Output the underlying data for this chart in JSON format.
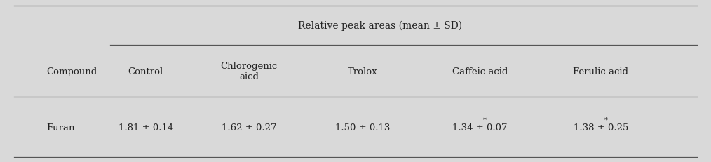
{
  "bg_color": "#d9d9d9",
  "header_main": "Relative peak areas (mean ± SD)",
  "col_headers": [
    "Compound",
    "Control",
    "Chlorogenic\naicd",
    "Trolox",
    "Caffeic acid",
    "Ferulic acid"
  ],
  "data_rows": [
    [
      "Furan",
      "1.81 ± 0.14",
      "1.62 ± 0.27",
      "1.50 ± 0.13",
      "1.34 ± 0.07*",
      "1.38 ± 0.25*"
    ]
  ],
  "asterisk_cols": [
    4,
    5
  ],
  "font_size": 9.5,
  "font_size_header": 10.0,
  "line_color": "#555555",
  "text_color": "#222222"
}
